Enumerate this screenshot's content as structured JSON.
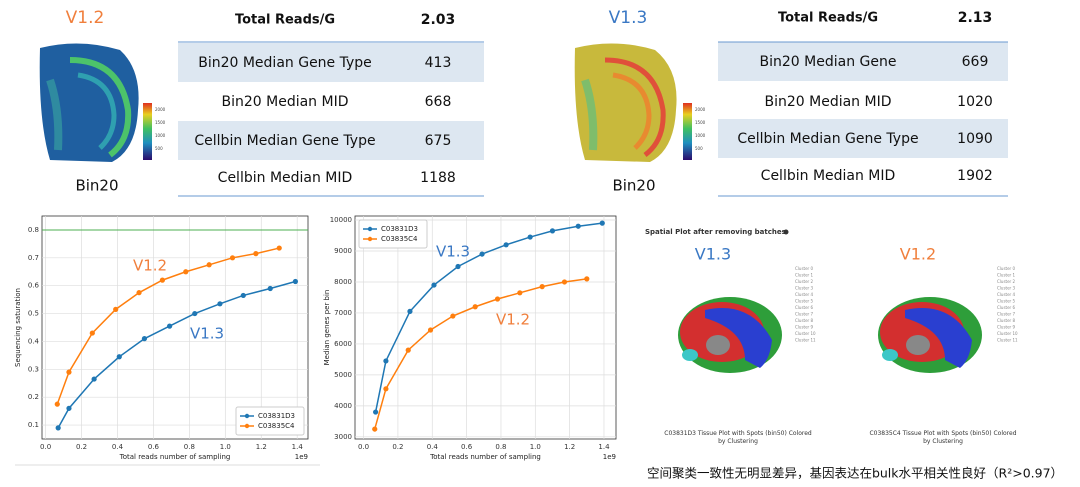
{
  "panels": [
    {
      "version": "V1.2",
      "image_label": "Bin20",
      "colorbar_labels": [
        2000,
        1500,
        1000,
        500
      ],
      "table": {
        "rows": [
          [
            "Total Reads/G",
            2.03
          ],
          [
            "Bin20 Median Gene Type",
            413
          ],
          [
            "Bin20 Median MID",
            668
          ],
          [
            "Cellbin Median Gene Type",
            675
          ],
          [
            "Cellbin Median MID",
            1188
          ]
        ]
      }
    },
    {
      "version": "V1.3",
      "image_label": "Bin20",
      "colorbar_labels": [
        2000,
        1500,
        1000,
        500
      ],
      "table": {
        "rows": [
          [
            "Total Reads/G",
            2.13
          ],
          [
            "Bin20 Median Gene",
            669
          ],
          [
            "Bin20 Median MID",
            1020
          ],
          [
            "Cellbin Median Gene Type",
            1090
          ],
          [
            "Cellbin Median MID",
            1902
          ]
        ]
      }
    }
  ],
  "chart_data": [
    {
      "type": "line",
      "xlabel": "Total reads number of sampling",
      "ylabel": "Sequencing saturation",
      "x_scale_label": "1e9",
      "xlim": [
        -0.02,
        1.46
      ],
      "ylim": [
        0.05,
        0.85
      ],
      "xticks": [
        {
          "value": 0,
          "label": "0.0"
        },
        0.2,
        0.4,
        0.6,
        0.8,
        {
          "value": 1,
          "label": "1.0"
        },
        1.2,
        1.4
      ],
      "yticks": [
        0.1,
        0.2,
        0.3,
        0.4,
        0.5,
        0.6,
        0.7,
        0.8
      ],
      "grid": true,
      "hline": 0.8,
      "hline_color": "#4caf50",
      "legend": "lower right",
      "annotations": [
        {
          "text": "V1.2",
          "color": "#f07f3c"
        },
        {
          "text": "V1.3",
          "color": "#3a78c4"
        }
      ],
      "series": [
        {
          "name": "C03831D3",
          "color": "#1f77b4",
          "x": [
            0.07,
            0.13,
            0.27,
            0.41,
            0.55,
            0.69,
            0.83,
            0.97,
            1.1,
            1.25,
            1.39
          ],
          "values": [
            0.09,
            0.16,
            0.265,
            0.345,
            0.41,
            0.455,
            0.5,
            0.535,
            0.565,
            0.59,
            0.615
          ]
        },
        {
          "name": "C03835C4",
          "color": "#ff7f0e",
          "x": [
            0.065,
            0.13,
            0.26,
            0.39,
            0.52,
            0.65,
            0.78,
            0.91,
            1.04,
            1.17,
            1.3
          ],
          "values": [
            0.175,
            0.29,
            0.43,
            0.515,
            0.575,
            0.62,
            0.65,
            0.675,
            0.7,
            0.715,
            0.735
          ]
        }
      ]
    },
    {
      "type": "line",
      "xlabel": "Total reads number of sampling",
      "ylabel": "Median genes per bin",
      "x_scale_label": "1e9",
      "xlim": [
        -0.05,
        1.47
      ],
      "ylim": [
        2930,
        10130
      ],
      "xticks": [
        {
          "value": 0,
          "label": "0.0"
        },
        0.2,
        0.4,
        0.6,
        0.8,
        {
          "value": 1,
          "label": "1.0"
        },
        1.2,
        1.4
      ],
      "yticks": [
        3000,
        4000,
        5000,
        6000,
        7000,
        8000,
        9000,
        10000
      ],
      "grid": true,
      "legend": "upper left",
      "annotations": [
        {
          "text": "V1.3",
          "color": "#3a78c4"
        },
        {
          "text": "V1.2",
          "color": "#f07f3c"
        }
      ],
      "series": [
        {
          "name": "C03831D3",
          "color": "#1f77b4",
          "x": [
            0.07,
            0.13,
            0.27,
            0.41,
            0.55,
            0.69,
            0.83,
            0.97,
            1.1,
            1.25,
            1.39
          ],
          "values": [
            3800,
            5450,
            7050,
            7900,
            8500,
            8900,
            9200,
            9450,
            9650,
            9800,
            9900
          ]
        },
        {
          "name": "C03835C4",
          "color": "#ff7f0e",
          "x": [
            0.065,
            0.13,
            0.26,
            0.39,
            0.52,
            0.65,
            0.78,
            0.91,
            1.04,
            1.17,
            1.3
          ],
          "values": [
            3250,
            4550,
            5800,
            6450,
            6900,
            7200,
            7450,
            7650,
            7850,
            8000,
            8100
          ]
        }
      ]
    }
  ],
  "spatial": {
    "title": "Spatial Plot after removing batches",
    "plots": [
      {
        "version": "V1.3",
        "caption": "C03831D3 Tissue Plot with Spots (bin50) Colored by Clustering"
      },
      {
        "version": "V1.2",
        "caption": "C03835C4 Tissue Plot with Spots (bin50) Colored by Clustering"
      }
    ],
    "clusters": [
      "Cluster 0",
      "Cluster 1",
      "Cluster 2",
      "Cluster 3",
      "Cluster 4",
      "Cluster 5",
      "Cluster 6",
      "Cluster 7",
      "Cluster 8",
      "Cluster 9",
      "Cluster 10",
      "Cluster 11"
    ]
  },
  "footer": "空间聚类一致性无明显差异，基因表达在bulk水平相关性良好（R²>0.97）"
}
